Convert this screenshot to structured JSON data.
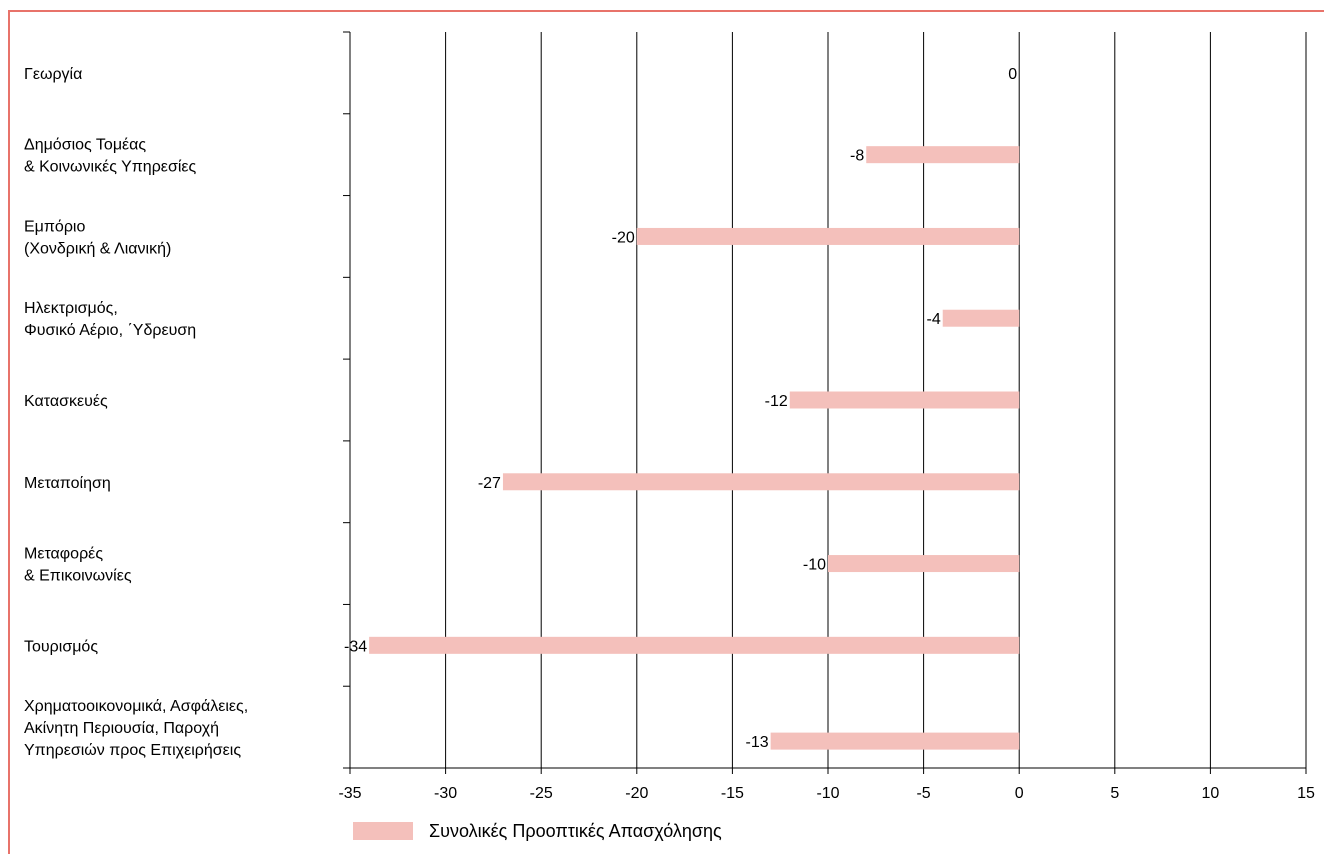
{
  "theme": {
    "frame_color": "#e8736a",
    "bar_color": "#f4c0bb",
    "grid_color": "#000000",
    "text_color": "#000000"
  },
  "chart_data": {
    "type": "bar",
    "orientation": "horizontal",
    "categories": [
      [
        "Γεωργία"
      ],
      [
        "Δημόσιος Τομέας",
        "& Κοινωνικές Υπηρεσίες"
      ],
      [
        "Εμπόριο",
        "(Χονδρική & Λιανική)"
      ],
      [
        "Ηλεκτρισμός,",
        "Φυσικό Αέριο, ΄Υδρευση"
      ],
      [
        "Κατασκευές"
      ],
      [
        "Μεταποίηση"
      ],
      [
        "Μεταφορές",
        "& Επικοινωνίες"
      ],
      [
        "Τουρισμός"
      ],
      [
        "Χρηματοοικονομικά, Ασφάλειες,",
        "Ακίνητη Περιουσία, Παροχή",
        "Υπηρεσιών προς Επιχειρήσεις"
      ]
    ],
    "series": [
      {
        "name": "Συνολικές Προοπτικές Απασχόλησης",
        "values": [
          0,
          -8,
          -20,
          -4,
          -12,
          -27,
          -10,
          -34,
          -13
        ],
        "labels": [
          "0",
          "-8",
          "-20",
          "-4",
          "-12",
          "-27",
          "-10",
          "-34",
          "-13"
        ]
      }
    ],
    "xlim": [
      -35,
      15
    ],
    "xticks": [
      -35,
      -30,
      -25,
      -20,
      -15,
      -10,
      -5,
      0,
      5,
      10,
      15
    ],
    "xtick_labels": [
      "-35",
      "-30",
      "-25",
      "-20",
      "-15",
      "-10",
      "-5",
      "0",
      "5",
      "10",
      "15"
    ],
    "grid": "vertical",
    "legend_position": "bottom-left"
  }
}
